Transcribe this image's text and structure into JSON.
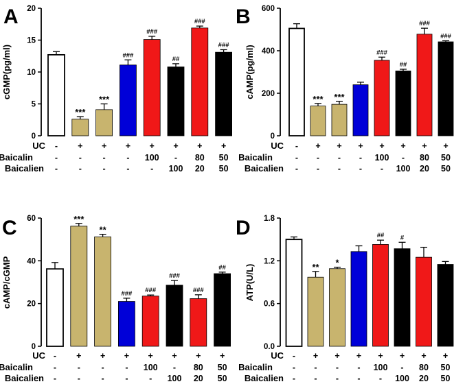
{
  "chart_data": [
    {
      "panel_label": "A",
      "type": "bar",
      "ylabel": "cGMP(pg/ml)",
      "ylim": [
        0,
        20
      ],
      "yticks": [
        "0",
        "5",
        "10",
        "15",
        "20"
      ],
      "values": [
        12.7,
        2.6,
        4.1,
        11.1,
        15.1,
        10.8,
        16.9,
        13.1
      ],
      "errors": [
        0.5,
        0.4,
        0.9,
        0.8,
        0.5,
        0.5,
        0.3,
        0.4
      ],
      "significance": [
        "",
        "***",
        "***",
        "###",
        "###",
        "##",
        "###",
        "###"
      ],
      "colors": [
        "#ffffff",
        "#c8b46e",
        "#c8b46e",
        "#0000d8",
        "#f01818",
        "#000000",
        "#f01818",
        "#000000"
      ],
      "row_labels": [
        "UC",
        "Baicalin",
        "Baicalien"
      ],
      "rows": [
        [
          "-",
          "+",
          "+",
          "+",
          "+",
          "+",
          "+",
          "+"
        ],
        [
          "-",
          "-",
          "-",
          "-",
          "100",
          "-",
          "80",
          "50"
        ],
        [
          "-",
          "-",
          "-",
          "-",
          "-",
          "100",
          "20",
          "50"
        ]
      ]
    },
    {
      "panel_label": "B",
      "type": "bar",
      "ylabel": "cAMP(pg/ml)",
      "ylim": [
        0,
        600
      ],
      "yticks": [
        "0",
        "200",
        "400",
        "600"
      ],
      "values": [
        505,
        140,
        148,
        240,
        355,
        305,
        478,
        442
      ],
      "errors": [
        22,
        12,
        14,
        12,
        15,
        8,
        28,
        5
      ],
      "significance": [
        "",
        "***",
        "***",
        "",
        "###",
        "##",
        "###",
        "###"
      ],
      "colors": [
        "#ffffff",
        "#c8b46e",
        "#c8b46e",
        "#0000d8",
        "#f01818",
        "#000000",
        "#f01818",
        "#000000"
      ],
      "row_labels": [
        "UC",
        "Baicalin",
        "Baicalien"
      ],
      "rows": [
        [
          "-",
          "+",
          "+",
          "+",
          "+",
          "+",
          "+",
          "+"
        ],
        [
          "-",
          "-",
          "-",
          "-",
          "100",
          "-",
          "80",
          "50"
        ],
        [
          "-",
          "-",
          "-",
          "-",
          "-",
          "100",
          "20",
          "50"
        ]
      ]
    },
    {
      "panel_label": "C",
      "type": "bar",
      "ylabel": "cAMP/cGMP",
      "ylim": [
        0,
        60
      ],
      "yticks": [
        "0",
        "20",
        "40",
        "60"
      ],
      "values": [
        36.2,
        56.2,
        51.2,
        21.0,
        23.5,
        28.6,
        22.3,
        34.0
      ],
      "errors": [
        3.0,
        1.3,
        1.2,
        1.5,
        0.5,
        2.2,
        1.8,
        0.7
      ],
      "significance": [
        "",
        "***",
        "**",
        "###",
        "###",
        "###",
        "###",
        "##"
      ],
      "colors": [
        "#ffffff",
        "#c8b46e",
        "#c8b46e",
        "#0000d8",
        "#f01818",
        "#000000",
        "#f01818",
        "#000000"
      ],
      "row_labels": [
        "UC",
        "Baicalin",
        "Baicalien"
      ],
      "rows": [
        [
          "-",
          "+",
          "+",
          "+",
          "+",
          "+",
          "+",
          "+"
        ],
        [
          "-",
          "-",
          "-",
          "-",
          "100",
          "-",
          "80",
          "50"
        ],
        [
          "-",
          "-",
          "-",
          "-",
          "-",
          "100",
          "20",
          "50"
        ]
      ]
    },
    {
      "panel_label": "D",
      "type": "bar",
      "ylabel": "ATP(U/L)",
      "ylim": [
        0,
        1.8
      ],
      "yticks": [
        "0.0",
        "0.6",
        "1.2",
        "1.8"
      ],
      "values": [
        1.5,
        0.97,
        1.09,
        1.33,
        1.43,
        1.37,
        1.25,
        1.15
      ],
      "errors": [
        0.035,
        0.08,
        0.02,
        0.08,
        0.06,
        0.09,
        0.14,
        0.04
      ],
      "significance": [
        "",
        "**",
        "*",
        "",
        "##",
        "#",
        "",
        ""
      ],
      "colors": [
        "#ffffff",
        "#c8b46e",
        "#c8b46e",
        "#0000d8",
        "#f01818",
        "#000000",
        "#f01818",
        "#000000"
      ],
      "row_labels": [
        "UC",
        "Baicalin",
        "Baicalien"
      ],
      "rows": [
        [
          "-",
          "+",
          "+",
          "+",
          "+",
          "+",
          "+",
          "+"
        ],
        [
          "-",
          "-",
          "-",
          "-",
          "100",
          "-",
          "80",
          "50"
        ],
        [
          "-",
          "-",
          "-",
          "-",
          "-",
          "100",
          "20",
          "50"
        ]
      ]
    }
  ]
}
